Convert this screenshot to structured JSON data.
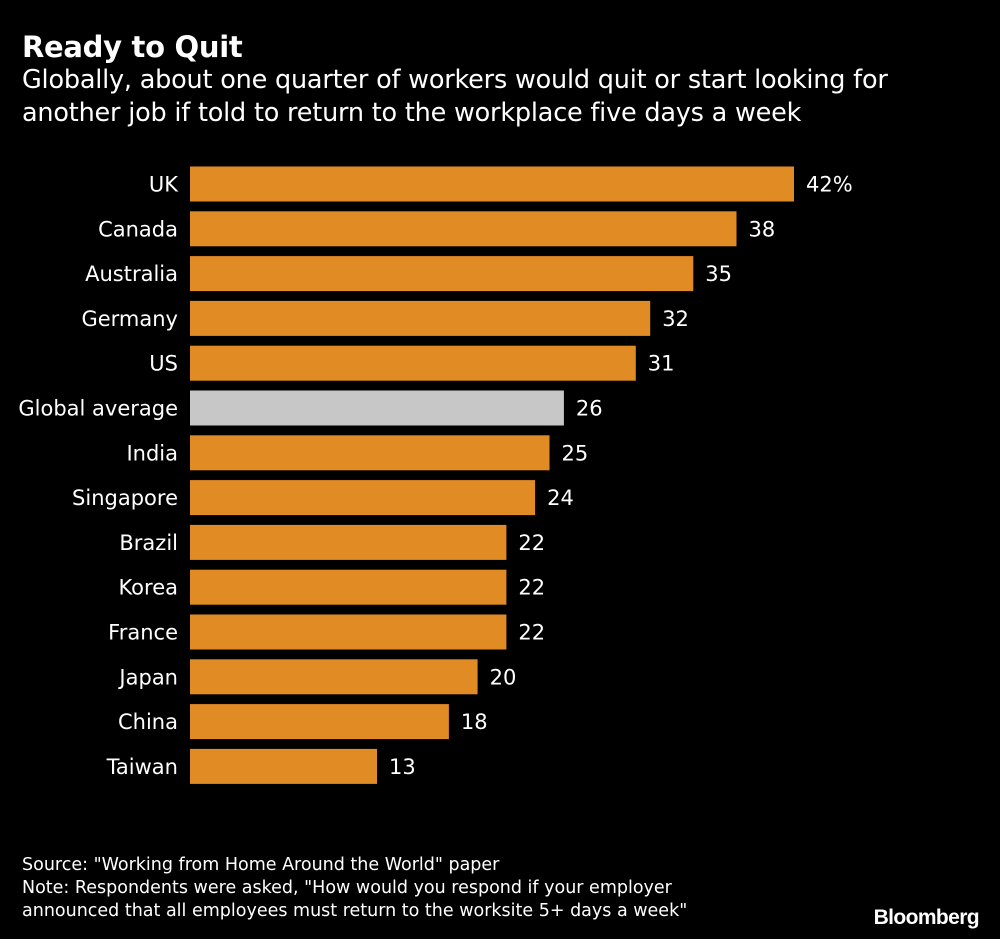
{
  "header": {
    "title": "Ready to Quit",
    "subtitle": "Globally, about one quarter of workers would quit or start looking for another job if told to return to the workplace five days a week"
  },
  "colors": {
    "background": "#000000",
    "bar": "#e08b24",
    "highlight_bar": "#c7c7c7",
    "text": "#ffffff"
  },
  "chart_data": {
    "type": "bar",
    "orientation": "horizontal",
    "title": "Ready to Quit",
    "subtitle": "Globally, about one quarter of workers would quit or start looking for another job if told to return to the workplace five days a week",
    "categories": [
      "UK",
      "Canada",
      "Australia",
      "Germany",
      "US",
      "Global average",
      "India",
      "Singapore",
      "Brazil",
      "Korea",
      "France",
      "Japan",
      "China",
      "Taiwan"
    ],
    "values": [
      42,
      38,
      35,
      32,
      31,
      26,
      25,
      24,
      22,
      22,
      22,
      20,
      18,
      13
    ],
    "value_labels": [
      "42%",
      "38",
      "35",
      "32",
      "31",
      "26",
      "25",
      "24",
      "22",
      "22",
      "22",
      "20",
      "18",
      "13"
    ],
    "highlight_index": 5,
    "xlim": [
      0,
      42
    ],
    "unit": "%",
    "xlabel": "",
    "ylabel": "",
    "grid": false
  },
  "footer": {
    "source": "Source: \"Working from Home Around the World\" paper",
    "note_line1": "Note: Respondents were asked, \"How would you respond if your employer",
    "note_line2": "announced that all employees must return to the worksite 5+ days a week\""
  },
  "brand": {
    "logo_text": "Bloomberg"
  }
}
